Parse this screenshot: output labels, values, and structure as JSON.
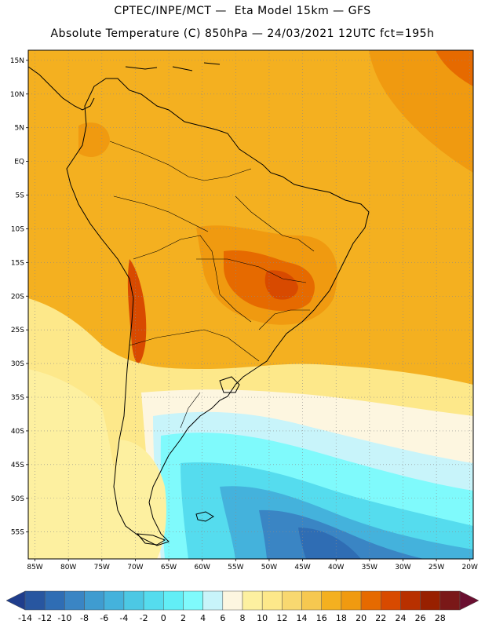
{
  "header": {
    "line1": "CPTEC/INPE/MCT —  Eta Model 15km — GFS",
    "line2": "Absolute Temperature (C) 850hPa — 24/03/2021 12UTC fct=195h"
  },
  "map": {
    "lat_labels": [
      "15N",
      "10N",
      "5N",
      "EQ",
      "5S",
      "10S",
      "15S",
      "20S",
      "25S",
      "30S",
      "35S",
      "40S",
      "45S",
      "50S",
      "55S"
    ],
    "lon_labels": [
      "85W",
      "80W",
      "75W",
      "70W",
      "65W",
      "60W",
      "55W",
      "50W",
      "45W",
      "40W",
      "35W",
      "30W",
      "25W",
      "20W"
    ]
  },
  "colorbar": {
    "labels": [
      "-14",
      "-12",
      "-10",
      "-8",
      "-6",
      "-4",
      "-2",
      "0",
      "2",
      "4",
      "6",
      "8",
      "10",
      "12",
      "14",
      "16",
      "18",
      "20",
      "22",
      "24",
      "26",
      "28"
    ],
    "colors": [
      "#1f3d8c",
      "#2856a0",
      "#2f6db4",
      "#3a85c4",
      "#3f9cd0",
      "#44b2dc",
      "#4cc8e4",
      "#55dcee",
      "#62eef6",
      "#7ffafc",
      "#c8f4fa",
      "#fdf6e0",
      "#fdf0a0",
      "#fde88a",
      "#f8d870",
      "#f6c850",
      "#f4b020",
      "#f09a10",
      "#e66a00",
      "#d84a00",
      "#b83000",
      "#982000",
      "#7a1818",
      "#6a0f30"
    ]
  },
  "palette": {
    "grid": "#8a8a8a",
    "coast": "#000000",
    "background": "#ffffff"
  }
}
